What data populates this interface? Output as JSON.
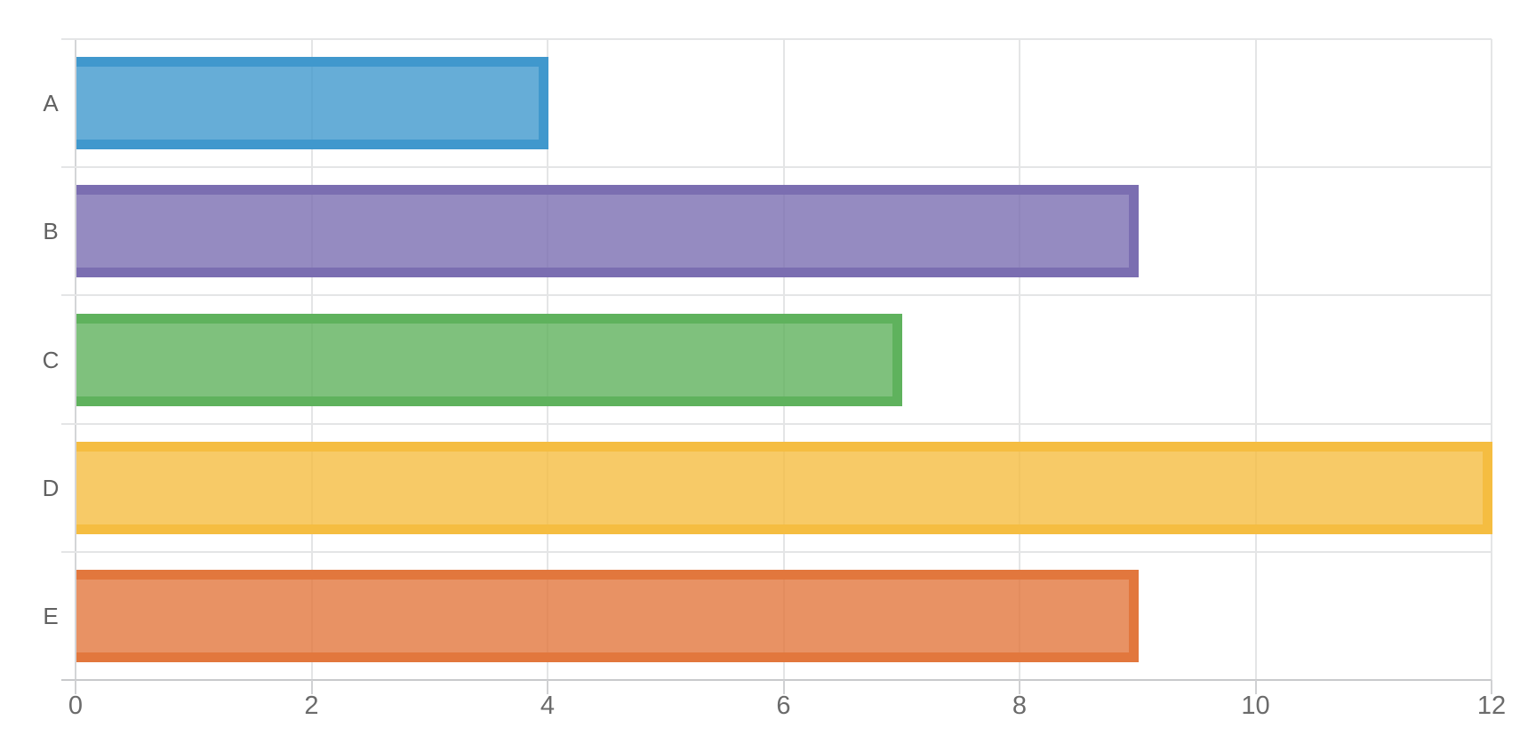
{
  "chart_data": {
    "type": "bar",
    "orientation": "horizontal",
    "title": "",
    "xlabel": "",
    "ylabel": "",
    "categories": [
      "A",
      "B",
      "C",
      "D",
      "E"
    ],
    "values": [
      4,
      9,
      7,
      12,
      9
    ],
    "xlim": [
      0,
      12
    ],
    "xticks": [
      0,
      2,
      4,
      6,
      8,
      10,
      12
    ],
    "xtick_labels": [
      "0",
      "2",
      "4",
      "6",
      "8",
      "10",
      "12"
    ],
    "grid": true,
    "legend_position": "none",
    "bar_colors": [
      {
        "category": "A",
        "edge": "#4098cd",
        "fill": "rgba(64,152,205,0.8)"
      },
      {
        "category": "B",
        "edge": "#7b6eb1",
        "fill": "rgba(123,110,177,0.8)"
      },
      {
        "category": "C",
        "edge": "#5fb25d",
        "fill": "rgba(95,178,93,0.8)"
      },
      {
        "category": "D",
        "edge": "#f5bd41",
        "fill": "rgba(245,189,65,0.8)"
      },
      {
        "category": "E",
        "edge": "#e2773d",
        "fill": "rgba(226,119,61,0.8)"
      }
    ]
  },
  "style": {
    "background": "#ffffff",
    "gridline_color": "#e4e5e6",
    "axis_line_color": "#c9cacc",
    "zero_line_color": "#d4d5d7",
    "tick_mark_color": "#d0d1d3",
    "tick_label_color": "#6b6b6b",
    "category_label_color": "#616161"
  }
}
